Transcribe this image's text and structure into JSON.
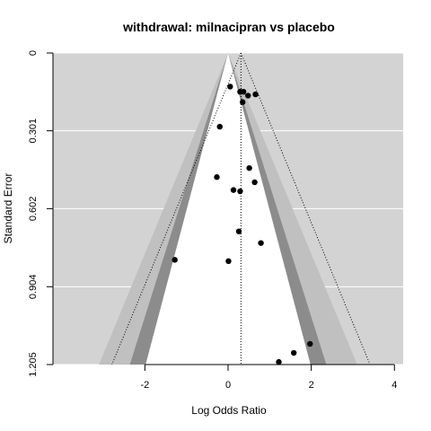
{
  "chart_data": {
    "type": "scatter",
    "subtype": "contour-enhanced funnel plot",
    "title": "withdrawal: milnacipran vs placebo",
    "xlabel": "Log Odds Ratio",
    "ylabel": "Standard Error",
    "xlim": [
      -4.21,
      4.21
    ],
    "ylim": [
      1.205,
      0
    ],
    "y_reversed": true,
    "xticks": [
      -2,
      0,
      2,
      4
    ],
    "xtick_labels": [
      "-2",
      "0",
      "2",
      "4"
    ],
    "yticks": [
      0,
      0.301,
      0.602,
      0.904,
      1.205
    ],
    "ytick_labels": [
      "0",
      "0.301",
      "0.602",
      "0.904",
      "1.205"
    ],
    "grid": "horizontal",
    "pooled_estimate": 0.31,
    "contours": [
      {
        "level": "90%",
        "z": 1.645,
        "color": "#ffffff"
      },
      {
        "level": "95%",
        "z": 1.96,
        "color": "#8c8c8c"
      },
      {
        "level": "99%",
        "z": 2.576,
        "color": "#c0c0c0"
      }
    ],
    "background_color": "#d3d3d3",
    "points": [
      {
        "x": 0.05,
        "y": 0.13
      },
      {
        "x": 0.29,
        "y": 0.15
      },
      {
        "x": 0.37,
        "y": 0.15
      },
      {
        "x": 0.48,
        "y": 0.165
      },
      {
        "x": 0.66,
        "y": 0.16
      },
      {
        "x": 0.35,
        "y": 0.19
      },
      {
        "x": -0.2,
        "y": 0.285
      },
      {
        "x": 0.51,
        "y": 0.445
      },
      {
        "x": -0.27,
        "y": 0.48
      },
      {
        "x": 0.64,
        "y": 0.5
      },
      {
        "x": 0.13,
        "y": 0.53
      },
      {
        "x": 0.29,
        "y": 0.535
      },
      {
        "x": 0.26,
        "y": 0.69
      },
      {
        "x": 0.79,
        "y": 0.735
      },
      {
        "x": -1.28,
        "y": 0.8
      },
      {
        "x": 0.01,
        "y": 0.805
      },
      {
        "x": 1.97,
        "y": 1.125
      },
      {
        "x": 1.58,
        "y": 1.16
      },
      {
        "x": 1.22,
        "y": 1.195
      }
    ]
  }
}
